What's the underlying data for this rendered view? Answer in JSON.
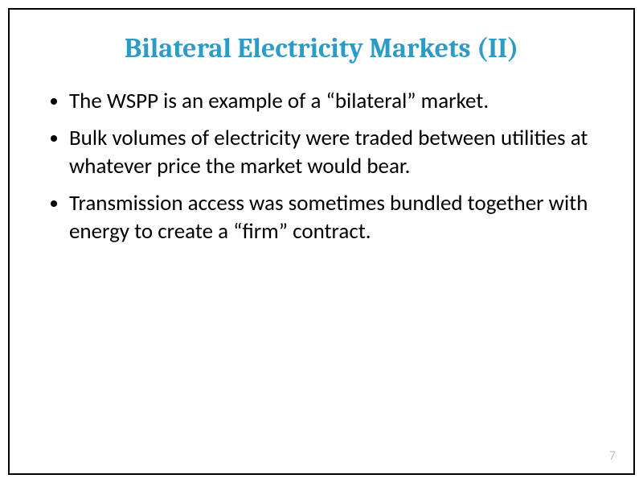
{
  "slide": {
    "title": "Bilateral Electricity Markets (II)",
    "title_color": "#2e9bc6",
    "title_fontsize": 34,
    "title_font_family": "Cambria, Georgia, 'Times New Roman', serif",
    "title_weight": 700,
    "bullets": [
      "The WSPP is an example of a “bilateral” market.",
      "Bulk volumes of electricity were traded between utilities at whatever price the market would bear.",
      "Transmission access was sometimes bundled together with energy to create a “ﬁrm” contract."
    ],
    "bullet_fontsize": 27,
    "bullet_color": "#000000",
    "page_number": "7",
    "page_number_color": "#bfbfbf",
    "background_color": "#ffffff",
    "border_color": "#000000",
    "border_width": 2
  }
}
